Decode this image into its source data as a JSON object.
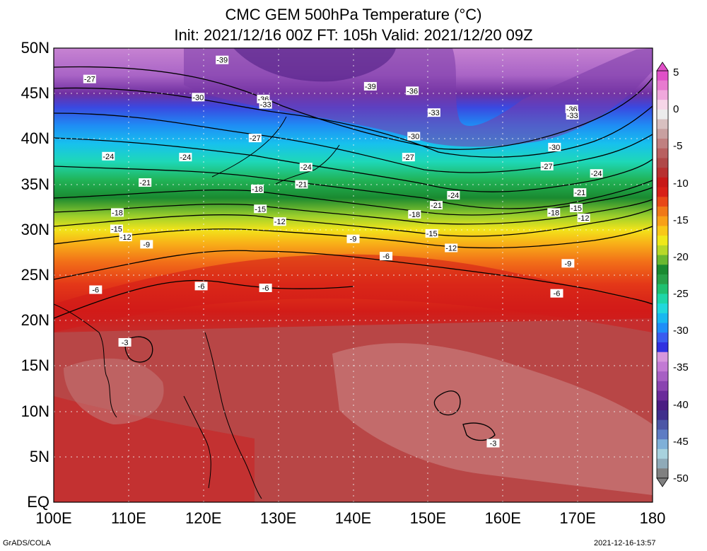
{
  "title": {
    "line1": "CMC GEM 500hPa Temperature (°C)",
    "line2": "Init: 2021/12/16 00Z  FT: 105h  Valid: 2021/12/20 09Z"
  },
  "map": {
    "lon_range": [
      100,
      180
    ],
    "lat_range": [
      0,
      50
    ],
    "lat_labels": [
      "50N",
      "45N",
      "40N",
      "35N",
      "30N",
      "25N",
      "20N",
      "15N",
      "10N",
      "5N",
      "EQ"
    ],
    "lon_labels": [
      "100E",
      "110E",
      "120E",
      "130E",
      "140E",
      "150E",
      "160E",
      "170E",
      "180"
    ],
    "contour_labels": [
      {
        "text": "-39",
        "lon": 122.5,
        "lat": 48.7
      },
      {
        "text": "-39",
        "lon": 142.3,
        "lat": 45.8
      },
      {
        "text": "-27",
        "lon": 104.8,
        "lat": 46.6
      },
      {
        "text": "-30",
        "lon": 119.3,
        "lat": 44.6
      },
      {
        "text": "-36",
        "lon": 128.0,
        "lat": 44.4
      },
      {
        "text": "-33",
        "lon": 128.3,
        "lat": 43.8
      },
      {
        "text": "-36",
        "lon": 147.9,
        "lat": 45.3
      },
      {
        "text": "-33",
        "lon": 150.8,
        "lat": 42.9
      },
      {
        "text": "-36",
        "lon": 169.2,
        "lat": 43.3
      },
      {
        "text": "-33",
        "lon": 169.3,
        "lat": 42.6
      },
      {
        "text": "-27",
        "lon": 126.9,
        "lat": 40.1
      },
      {
        "text": "-30",
        "lon": 148.1,
        "lat": 40.3
      },
      {
        "text": "-30",
        "lon": 166.9,
        "lat": 39.1
      },
      {
        "text": "-27",
        "lon": 147.4,
        "lat": 38.0
      },
      {
        "text": "-27",
        "lon": 165.9,
        "lat": 37.0
      },
      {
        "text": "-24",
        "lon": 107.3,
        "lat": 38.1
      },
      {
        "text": "-24",
        "lon": 117.6,
        "lat": 38.0
      },
      {
        "text": "-24",
        "lon": 133.7,
        "lat": 36.9
      },
      {
        "text": "-24",
        "lon": 172.5,
        "lat": 36.2
      },
      {
        "text": "-21",
        "lon": 112.2,
        "lat": 35.2
      },
      {
        "text": "-21",
        "lon": 133.1,
        "lat": 35.0
      },
      {
        "text": "-21",
        "lon": 170.3,
        "lat": 34.1
      },
      {
        "text": "-24",
        "lon": 153.4,
        "lat": 33.8
      },
      {
        "text": "-21",
        "lon": 151.1,
        "lat": 32.7
      },
      {
        "text": "-18",
        "lon": 127.2,
        "lat": 34.5
      },
      {
        "text": "-15",
        "lon": 127.6,
        "lat": 32.3
      },
      {
        "text": "-12",
        "lon": 130.2,
        "lat": 30.9
      },
      {
        "text": "-18",
        "lon": 108.5,
        "lat": 31.9
      },
      {
        "text": "-18",
        "lon": 148.2,
        "lat": 31.7
      },
      {
        "text": "-18",
        "lon": 166.8,
        "lat": 31.9
      },
      {
        "text": "-15",
        "lon": 169.8,
        "lat": 32.4
      },
      {
        "text": "-12",
        "lon": 170.8,
        "lat": 31.3
      },
      {
        "text": "-15",
        "lon": 108.4,
        "lat": 30.1
      },
      {
        "text": "-12",
        "lon": 109.6,
        "lat": 29.2
      },
      {
        "text": "-9",
        "lon": 112.4,
        "lat": 28.4
      },
      {
        "text": "-15",
        "lon": 150.5,
        "lat": 29.6
      },
      {
        "text": "-12",
        "lon": 153.1,
        "lat": 28.0
      },
      {
        "text": "-9",
        "lon": 140.0,
        "lat": 29.0
      },
      {
        "text": "-9",
        "lon": 168.7,
        "lat": 26.3
      },
      {
        "text": "-6",
        "lon": 144.4,
        "lat": 27.1
      },
      {
        "text": "-6",
        "lon": 105.6,
        "lat": 23.4
      },
      {
        "text": "-6",
        "lon": 119.7,
        "lat": 23.8
      },
      {
        "text": "-6",
        "lon": 128.3,
        "lat": 23.6
      },
      {
        "text": "-6",
        "lon": 167.2,
        "lat": 23.0
      },
      {
        "text": "-3",
        "lon": 109.5,
        "lat": 17.6
      },
      {
        "text": "-3",
        "lon": 158.7,
        "lat": 6.5
      }
    ]
  },
  "colorbar": {
    "colors": [
      "#808080",
      "#8faab8",
      "#a8d2de",
      "#7fb0d8",
      "#5e7cc4",
      "#4c56a6",
      "#3f2f8c",
      "#4a1c82",
      "#6a2a9a",
      "#8a44b0",
      "#a75fc4",
      "#c27ad4",
      "#d696dc",
      "#3030e0",
      "#3a5cf0",
      "#1f8ef8",
      "#19b8f0",
      "#22d8dc",
      "#1ed6a8",
      "#20c070",
      "#28a048",
      "#1a8a30",
      "#6ab830",
      "#b8d828",
      "#f0e81a",
      "#f8c818",
      "#f8a018",
      "#f07818",
      "#e84818",
      "#d82018",
      "#c81818",
      "#b83030",
      "#b04848",
      "#b86060",
      "#c08080",
      "#c8a0a0",
      "#d8c0c0",
      "#ececec",
      "#f6d6e8",
      "#f0a8dc",
      "#e87ad0",
      "#e050c8"
    ],
    "tick_labels": [
      "5",
      "0",
      "-5",
      "-10",
      "-15",
      "-20",
      "-25",
      "-30",
      "-35",
      "-40",
      "-45",
      "-50"
    ]
  },
  "footer": {
    "left": "GrADS/COLA",
    "right": "2021-12-16-13:57"
  }
}
